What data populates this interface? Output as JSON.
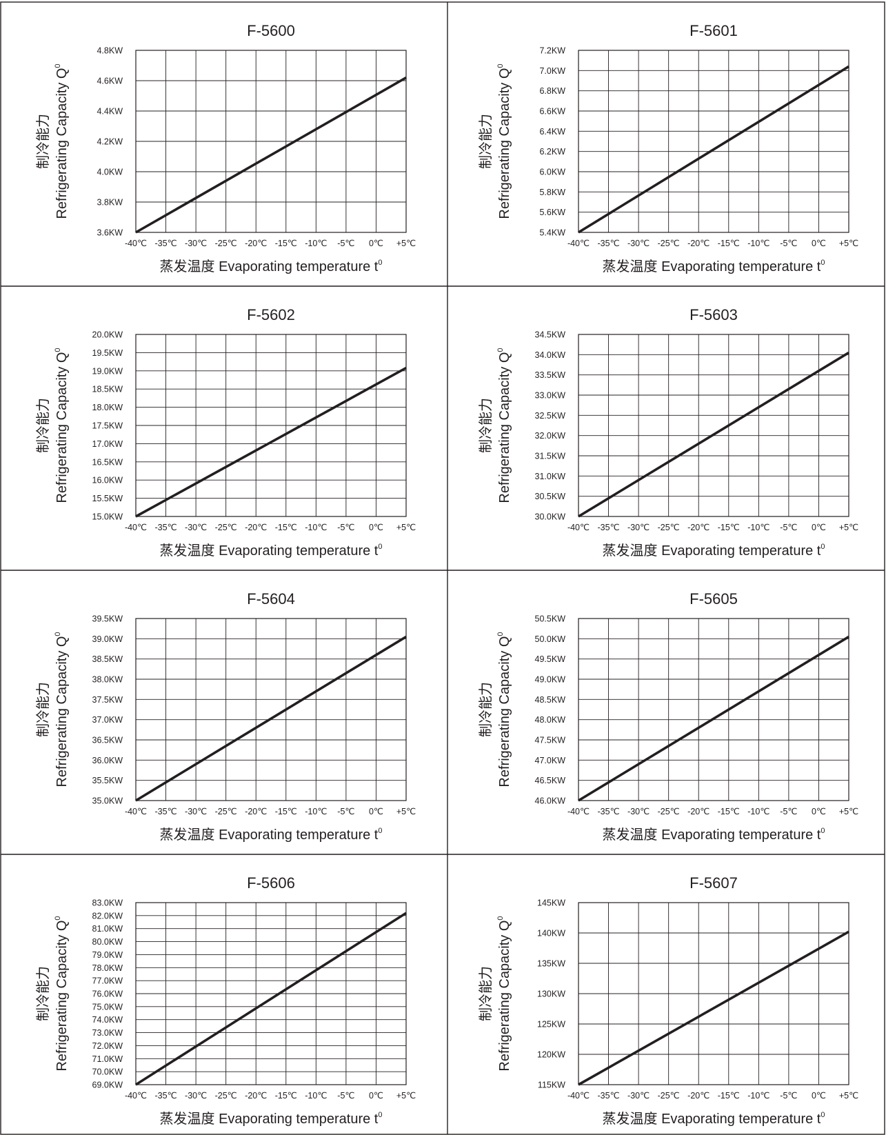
{
  "common": {
    "x_ticks": [
      "-40℃",
      "-35℃",
      "-30℃",
      "-25℃",
      "-20℃",
      "-15℃",
      "-10℃",
      "-5℃",
      "0℃",
      "+5℃"
    ],
    "x_label_cn": "蒸发温度",
    "x_label_en": "Evaporating temperature t",
    "x_label_sup": "0",
    "y_label_cn": "制冷能力",
    "y_label_en": "Refrigerating Capacity Q",
    "y_label_sup": "0"
  },
  "chart_data": [
    {
      "type": "line",
      "title": "F-5600",
      "xlabel": "蒸发温度 Evaporating temperature t0",
      "ylabel": "制冷能力 Refrigerating Capacity Q0",
      "xlim": [
        -40,
        5
      ],
      "ylim": [
        3.6,
        4.8
      ],
      "y_ticks": [
        "3.6KW",
        "3.8KW",
        "4.0KW",
        "4.2KW",
        "4.4KW",
        "4.6KW",
        "4.8KW"
      ],
      "grid": true,
      "series": [
        {
          "x": [
            -40,
            5
          ],
          "y": [
            3.6,
            4.62
          ]
        }
      ]
    },
    {
      "type": "line",
      "title": "F-5601",
      "xlabel": "蒸发温度 Evaporating temperature t0",
      "ylabel": "制冷能力 Refrigerating Capacity Q0",
      "xlim": [
        -40,
        5
      ],
      "ylim": [
        5.4,
        7.2
      ],
      "y_ticks": [
        "5.4KW",
        "5.6KW",
        "5.8KW",
        "6.0KW",
        "6.2KW",
        "6.4KW",
        "6.6KW",
        "6.8KW",
        "7.0KW",
        "7.2KW"
      ],
      "grid": true,
      "series": [
        {
          "x": [
            -40,
            5
          ],
          "y": [
            5.4,
            7.04
          ]
        }
      ]
    },
    {
      "type": "line",
      "title": "F-5602",
      "xlabel": "蒸发温度 Evaporating temperature t0",
      "ylabel": "制冷能力 Refrigerating Capacity Q0",
      "xlim": [
        -40,
        5
      ],
      "ylim": [
        15.0,
        20.0
      ],
      "y_ticks": [
        "15.0KW",
        "15.5KW",
        "16.0KW",
        "16.5KW",
        "17.0KW",
        "17.5KW",
        "18.0KW",
        "18.5KW",
        "19.0KW",
        "19.5KW",
        "20.0KW"
      ],
      "grid": true,
      "series": [
        {
          "x": [
            -40,
            5
          ],
          "y": [
            15.0,
            19.08
          ]
        }
      ]
    },
    {
      "type": "line",
      "title": "F-5603",
      "xlabel": "蒸发温度 Evaporating temperature t0",
      "ylabel": "制冷能力 Refrigerating Capacity Q0",
      "xlim": [
        -40,
        5
      ],
      "ylim": [
        30.0,
        34.5
      ],
      "y_ticks": [
        "30.0KW",
        "30.5KW",
        "31.0KW",
        "31.5KW",
        "32.0KW",
        "32.5KW",
        "33.0KW",
        "33.5KW",
        "34.0KW",
        "34.5KW"
      ],
      "grid": true,
      "series": [
        {
          "x": [
            -40,
            5
          ],
          "y": [
            30.0,
            34.05
          ]
        }
      ]
    },
    {
      "type": "line",
      "title": "F-5604",
      "xlabel": "蒸发温度 Evaporating temperature t0",
      "ylabel": "制冷能力 Refrigerating Capacity Q0",
      "xlim": [
        -40,
        5
      ],
      "ylim": [
        35.0,
        39.5
      ],
      "y_ticks": [
        "35.0KW",
        "35.5KW",
        "36.0KW",
        "36.5KW",
        "37.0KW",
        "37.5KW",
        "38.0KW",
        "38.5KW",
        "39.0KW",
        "39.5KW"
      ],
      "grid": true,
      "series": [
        {
          "x": [
            -40,
            5
          ],
          "y": [
            35.0,
            39.05
          ]
        }
      ]
    },
    {
      "type": "line",
      "title": "F-5605",
      "xlabel": "蒸发温度 Evaporating temperature t0",
      "ylabel": "制冷能力 Refrigerating Capacity Q0",
      "xlim": [
        -40,
        5
      ],
      "ylim": [
        46.0,
        50.5
      ],
      "y_ticks": [
        "46.0KW",
        "46.5KW",
        "47.0KW",
        "47.5KW",
        "48.0KW",
        "48.5KW",
        "49.0KW",
        "49.5KW",
        "50.0KW",
        "50.5KW"
      ],
      "grid": true,
      "series": [
        {
          "x": [
            -40,
            5
          ],
          "y": [
            46.0,
            50.05
          ]
        }
      ]
    },
    {
      "type": "line",
      "title": "F-5606",
      "xlabel": "蒸发温度 Evaporating temperature t0",
      "ylabel": "制冷能力 Refrigerating Capacity Q0",
      "xlim": [
        -40,
        5
      ],
      "ylim": [
        69.0,
        83.0
      ],
      "y_ticks": [
        "69.0KW",
        "70.0KW",
        "71.0KW",
        "72.0KW",
        "73.0KW",
        "74.0KW",
        "75.0KW",
        "76.0KW",
        "77.0KW",
        "78.0KW",
        "79.0KW",
        "80.0KW",
        "81.0KW",
        "82.0KW",
        "83.0KW"
      ],
      "grid": true,
      "series": [
        {
          "x": [
            -40,
            5
          ],
          "y": [
            69.0,
            82.2
          ]
        }
      ]
    },
    {
      "type": "line",
      "title": "F-5607",
      "xlabel": "蒸发温度 Evaporating temperature t0",
      "ylabel": "制冷能力 Refrigerating Capacity Q0",
      "xlim": [
        -40,
        5
      ],
      "ylim": [
        115,
        145
      ],
      "y_ticks": [
        "115KW",
        "120KW",
        "125KW",
        "130KW",
        "135KW",
        "140KW",
        "145KW"
      ],
      "grid": true,
      "series": [
        {
          "x": [
            -40,
            5
          ],
          "y": [
            115,
            140.2
          ]
        }
      ]
    }
  ]
}
